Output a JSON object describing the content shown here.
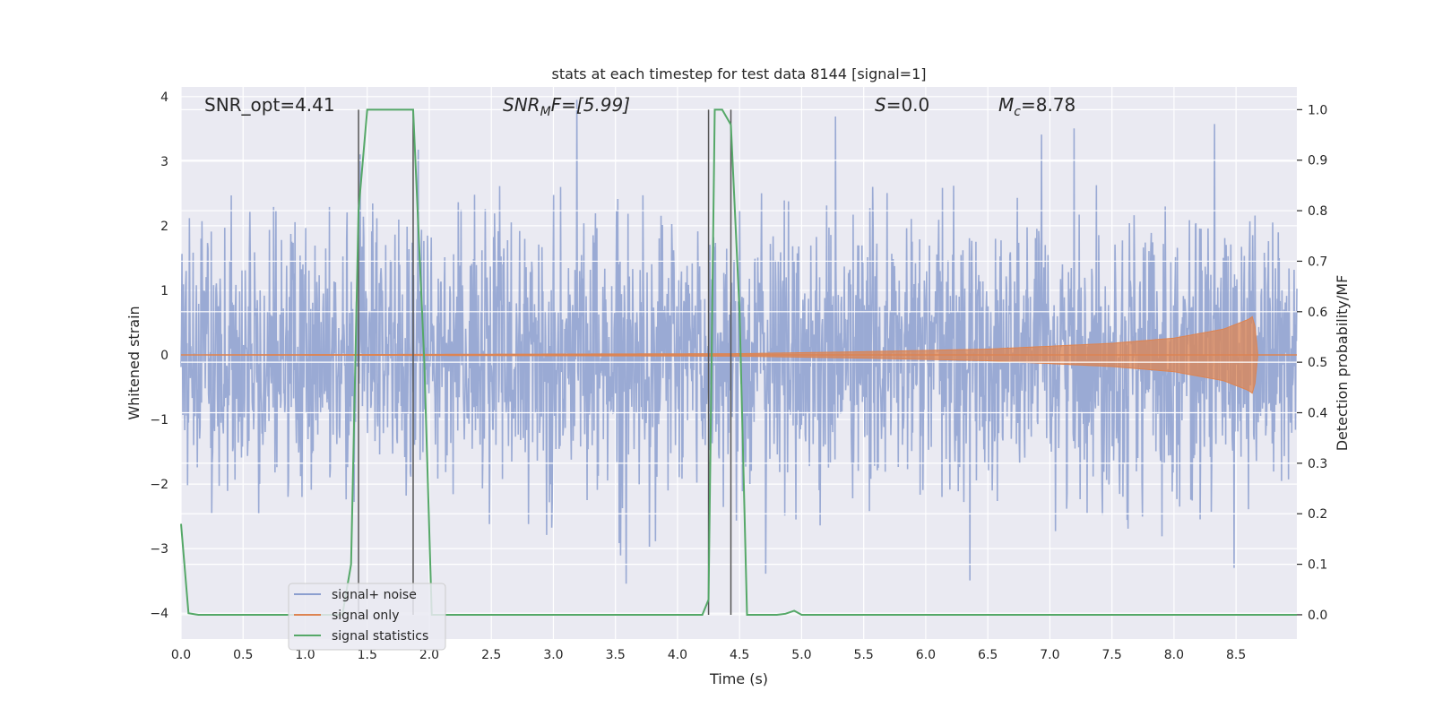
{
  "chart_data": {
    "type": "line",
    "title": "stats at each timestep for test data 8144 [signal=1]",
    "xlabel": "Time (s)",
    "ylabel": "Whitened strain",
    "y2label": "Detection probability/MF",
    "xlim": [
      0.0,
      8.99
    ],
    "ylim": [
      -4.4,
      4.15
    ],
    "y2lim": [
      -0.048,
      1.045
    ],
    "x_ticks": [
      "0.0",
      "0.5",
      "1.0",
      "1.5",
      "2.0",
      "2.5",
      "3.0",
      "3.5",
      "4.0",
      "4.5",
      "5.0",
      "5.5",
      "6.0",
      "6.5",
      "7.0",
      "7.5",
      "8.0",
      "8.5"
    ],
    "y_ticks": [
      "4",
      "3",
      "2",
      "1",
      "0",
      "−1",
      "−2",
      "−3",
      "−4"
    ],
    "y2_ticks": [
      "1.0",
      "0.9",
      "0.8",
      "0.7",
      "0.6",
      "0.5",
      "0.4",
      "0.3",
      "0.2",
      "0.1",
      "0.0"
    ],
    "grid": true,
    "legend_position": "lower-left",
    "annotations": {
      "snr_opt": "SNR_opt=4.41",
      "snr_mf_base": "SNR",
      "snr_mf_sub": "M",
      "snr_mf_rest": "F=[5.99]",
      "s_var": "S",
      "s_rest": "=0.0",
      "mc_base": "M",
      "mc_sub": "c",
      "mc_rest": "=8.78"
    },
    "vlines_x": [
      1.43,
      1.87,
      4.25,
      4.43
    ],
    "series": [
      {
        "name": "signal+ noise",
        "color": "#8c9fcf",
        "description_values": "noise",
        "amplitude_sigma": 1.0,
        "duration": 8.99
      },
      {
        "name": "signal only",
        "color": "#dd8452",
        "envelope_points": [
          [
            0.0,
            0.0
          ],
          [
            4.5,
            0.02
          ],
          [
            5.5,
            0.05
          ],
          [
            6.5,
            0.09
          ],
          [
            7.5,
            0.18
          ],
          [
            8.0,
            0.26
          ],
          [
            8.4,
            0.4
          ],
          [
            8.6,
            0.55
          ],
          [
            8.65,
            0.62
          ],
          [
            8.66,
            0.0
          ],
          [
            8.99,
            0.0
          ]
        ]
      },
      {
        "name": "signal statistics",
        "color": "#55a868",
        "points": [
          [
            0.0,
            0.18
          ],
          [
            0.06,
            0.003
          ],
          [
            0.14,
            0.0
          ],
          [
            1.3,
            0.0
          ],
          [
            1.37,
            0.1
          ],
          [
            1.43,
            0.8
          ],
          [
            1.5,
            1.0
          ],
          [
            1.87,
            1.0
          ],
          [
            1.96,
            0.5
          ],
          [
            2.02,
            0.0
          ],
          [
            4.2,
            0.0
          ],
          [
            4.25,
            0.03
          ],
          [
            4.3,
            1.0
          ],
          [
            4.36,
            1.0
          ],
          [
            4.43,
            0.97
          ],
          [
            4.5,
            0.6
          ],
          [
            4.56,
            0.0
          ],
          [
            4.8,
            0.0
          ],
          [
            4.87,
            0.002
          ],
          [
            4.94,
            0.008
          ],
          [
            5.0,
            0.0
          ],
          [
            8.99,
            0.0
          ]
        ]
      }
    ]
  }
}
